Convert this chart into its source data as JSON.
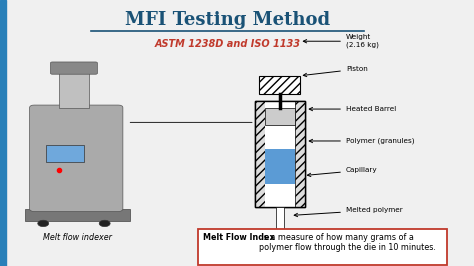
{
  "title": "MFI Testing Method",
  "subtitle": "ASTM 1238D and ISO 1133",
  "title_color": "#1a5276",
  "subtitle_color": "#c0392b",
  "bg_color": "#f0f0f0",
  "left_border_color": "#2980b9",
  "definition_bold": "Melt Flow Index",
  "definition_text": " is a measure of how many grams of a\npolymer flow through the die in 10 minutes.",
  "definition_box_color": "#c0392b",
  "caption": "Melt flow indexer",
  "hatch_color": "#aaaaaa",
  "polymer_color": "#5b9bd5",
  "machine_body_color": "#aaaaaa",
  "machine_dark": "#555555"
}
